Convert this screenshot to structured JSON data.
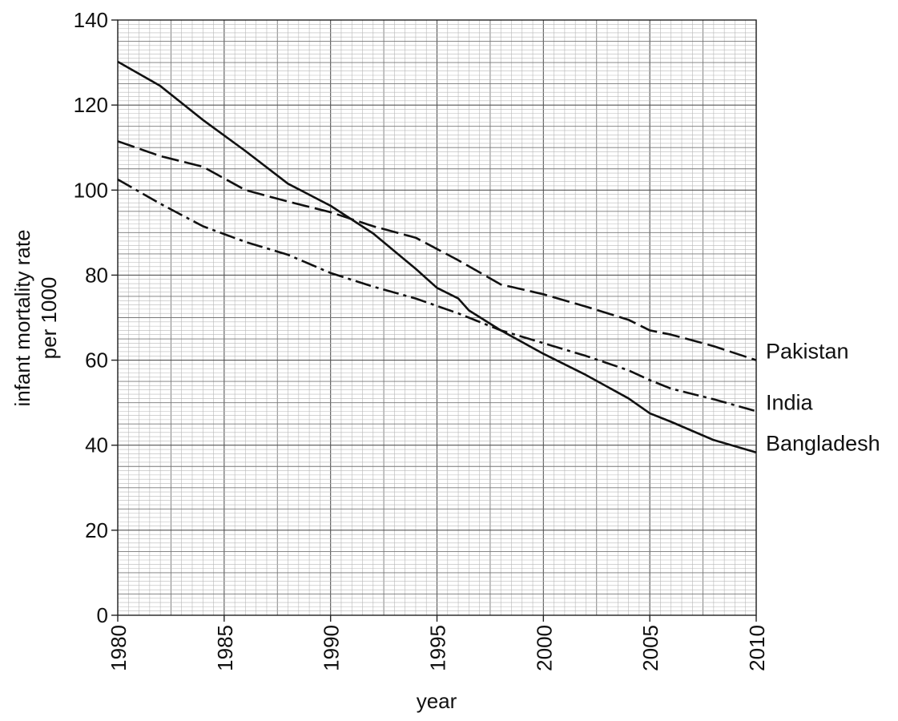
{
  "chart_data": {
    "type": "line",
    "xlabel": "year",
    "ylabel": [
      "infant mortality rate",
      "per 1000"
    ],
    "xlim": [
      1980,
      2010
    ],
    "ylim": [
      0,
      140
    ],
    "x_ticks": [
      1980,
      1985,
      1990,
      1995,
      2000,
      2005,
      2010
    ],
    "y_ticks": [
      0,
      20,
      40,
      60,
      80,
      100,
      120,
      140
    ],
    "grid": true,
    "legend": "labels at right end of lines",
    "series": [
      {
        "name": "Pakistan",
        "line_style": "dashed",
        "x": [
          1980,
          1982,
          1984,
          1986,
          1988,
          1990,
          1992,
          1994,
          1996,
          1998,
          2000,
          2002,
          2004,
          2005,
          2006,
          2008,
          2010
        ],
        "y": [
          111.5,
          108,
          105.5,
          100,
          97.3,
          94.8,
          91.5,
          88.8,
          83.5,
          77.8,
          75.5,
          72.6,
          69.5,
          67,
          66,
          63.3,
          60
        ]
      },
      {
        "name": "India",
        "line_style": "dash-dot",
        "x": [
          1980,
          1982,
          1984,
          1986,
          1988,
          1990,
          1992,
          1994,
          1996,
          1998,
          2000,
          2002,
          2004,
          2005,
          2006,
          2008,
          2010
        ],
        "y": [
          102.5,
          96.8,
          91.5,
          87.8,
          84.8,
          80.5,
          77.3,
          74.5,
          71,
          67,
          64,
          61,
          57.6,
          55.3,
          53.3,
          50.8,
          48
        ]
      },
      {
        "name": "Bangladesh",
        "line_style": "solid",
        "x": [
          1980,
          1982,
          1984,
          1986,
          1988,
          1990,
          1992,
          1994,
          1995,
          1996,
          1996.5,
          1998,
          2000,
          2002,
          2004,
          2005,
          2006,
          2008,
          2010
        ],
        "y": [
          130.2,
          124.5,
          116.5,
          109.2,
          101.5,
          96.3,
          89.8,
          81.5,
          77,
          74.5,
          71.7,
          67,
          61.5,
          56.5,
          51,
          47.5,
          45.5,
          41.2,
          38.3
        ]
      }
    ]
  }
}
